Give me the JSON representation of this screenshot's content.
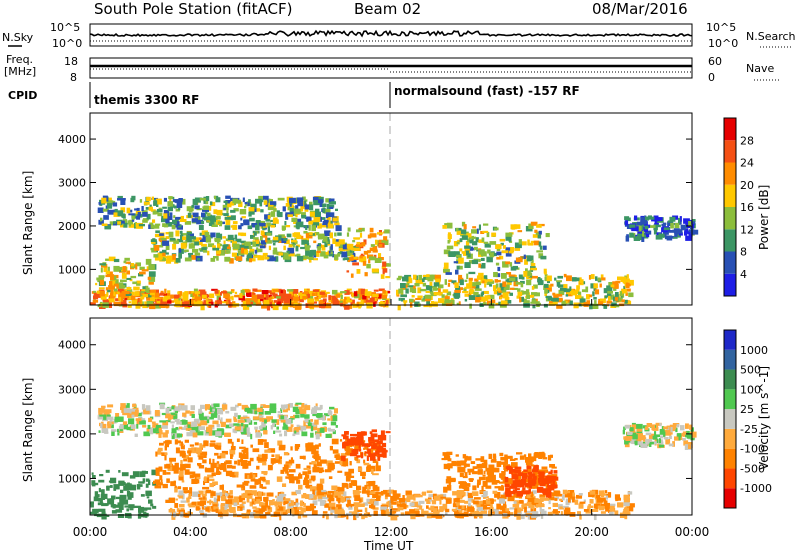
{
  "header": {
    "station": "South Pole Station (fitACF)",
    "beam": "Beam 02",
    "date": "08/Mar/2016"
  },
  "top_panels": {
    "nsky_label": "N.Sky",
    "nsky_ticks": [
      "10^5",
      "10^0"
    ],
    "nsearch_label": "N.Search",
    "nsearch_ticks": [
      "10^5",
      "10^0"
    ],
    "freq_label": "Freq.",
    "freq_unit": "[MHz]",
    "freq_ticks": [
      "18",
      "8"
    ],
    "nave_label": "Nave",
    "nave_ticks": [
      "60",
      "0"
    ],
    "cpid_label": "CPID",
    "cpid_segments": [
      {
        "label": "themis 3300 RF",
        "start_hour": 0,
        "end_hour": 12
      },
      {
        "label": "normalsound (fast) -157 RF",
        "start_hour": 12,
        "end_hour": 24
      }
    ]
  },
  "colors": {
    "power": [
      "#1e1ee6",
      "#2850b4",
      "#3c9664",
      "#8cbe3c",
      "#ffc800",
      "#ff8c00",
      "#f55014",
      "#e60000"
    ],
    "velocity": [
      "#e60000",
      "#ff4600",
      "#ff8200",
      "#ffaa3c",
      "#c8c8c0",
      "#50c850",
      "#3c8c50",
      "#3264a0",
      "#1e28c8"
    ]
  },
  "chart_data": [
    {
      "type": "heatmap",
      "name": "power",
      "xlabel": "",
      "ylabel": "Slant Range [km]",
      "xlim": [
        0,
        24
      ],
      "ylim": [
        180,
        4600
      ],
      "yticks": [
        1000,
        2000,
        3000,
        4000
      ],
      "colorbar_label": "Power [dB]",
      "colorbar_ticks": [
        "4",
        "8",
        "12",
        "16",
        "20",
        "24",
        "28"
      ],
      "colorbar_range": [
        0,
        32
      ],
      "bands": [
        {
          "t_start": 0.0,
          "t_end": 11.8,
          "range_lo": 180,
          "range_hi": 560,
          "value": 22
        },
        {
          "t_start": 0.2,
          "t_end": 2.4,
          "range_lo": 400,
          "range_hi": 1300,
          "value": 16
        },
        {
          "t_start": 2.4,
          "t_end": 10.6,
          "range_lo": 1250,
          "range_hi": 1900,
          "value": 14
        },
        {
          "t_start": 0.3,
          "t_end": 9.8,
          "range_lo": 2000,
          "range_hi": 2700,
          "value": 12
        },
        {
          "t_start": 10.2,
          "t_end": 11.8,
          "range_lo": 800,
          "range_hi": 2000,
          "value": 20
        },
        {
          "t_start": 12.2,
          "t_end": 21.5,
          "range_lo": 180,
          "range_hi": 900,
          "value": 16
        },
        {
          "t_start": 14.0,
          "t_end": 18.2,
          "range_lo": 900,
          "range_hi": 2100,
          "value": 14
        },
        {
          "t_start": 21.2,
          "t_end": 24.0,
          "range_lo": 1750,
          "range_hi": 2250,
          "value": 6
        }
      ]
    },
    {
      "type": "heatmap",
      "name": "velocity",
      "xlabel": "Time UT",
      "ylabel": "Slant Range [km]",
      "xlim": [
        0,
        24
      ],
      "ylim": [
        180,
        4600
      ],
      "yticks": [
        1000,
        2000,
        3000,
        4000
      ],
      "xticks": [
        "00:00",
        "04:00",
        "08:00",
        "12:00",
        "16:00",
        "20:00",
        "00:00"
      ],
      "colorbar_label": "Velocity [m s^-1]",
      "colorbar_ticks": [
        "-1000",
        "-500",
        "-100",
        "-25",
        "25",
        "100",
        "500",
        "1000"
      ],
      "bands": [
        {
          "t_start": 0.0,
          "t_end": 2.5,
          "range_lo": 180,
          "range_hi": 1200,
          "value": 200
        },
        {
          "t_start": 0.3,
          "t_end": 9.8,
          "range_lo": 2000,
          "range_hi": 2700,
          "value": 0
        },
        {
          "t_start": 2.5,
          "t_end": 11.5,
          "range_lo": 800,
          "range_hi": 1900,
          "value": -150
        },
        {
          "t_start": 10.0,
          "t_end": 11.8,
          "range_lo": 1500,
          "range_hi": 2100,
          "value": -600
        },
        {
          "t_start": 3.0,
          "t_end": 21.5,
          "range_lo": 180,
          "range_hi": 750,
          "value": -80
        },
        {
          "t_start": 14.0,
          "t_end": 18.5,
          "range_lo": 800,
          "range_hi": 1600,
          "value": -300
        },
        {
          "t_start": 16.5,
          "t_end": 18.5,
          "range_lo": 700,
          "range_hi": 1300,
          "value": -900
        },
        {
          "t_start": 21.2,
          "t_end": 24.0,
          "range_lo": 1750,
          "range_hi": 2250,
          "value": 0
        }
      ]
    }
  ]
}
